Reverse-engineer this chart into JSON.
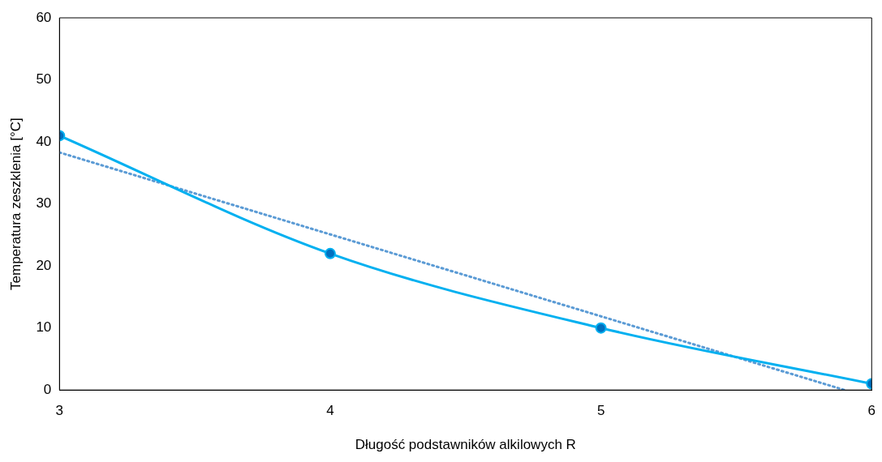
{
  "chart_data": {
    "type": "line",
    "xlabel": "Długość podstawników alkilowych R",
    "ylabel": "Temperatura zeszklenia [°C]",
    "x": [
      3,
      4,
      5,
      6
    ],
    "xlim": [
      3,
      6
    ],
    "xticks": [
      3,
      4,
      5,
      6
    ],
    "ylim": [
      0,
      60
    ],
    "yticks": [
      0,
      10,
      20,
      30,
      40,
      50,
      60
    ],
    "grid": false,
    "legend": false,
    "series": [
      {
        "type": "line",
        "color": "#00b0f0",
        "values": [
          41,
          22,
          10,
          1
        ],
        "marker": "circle",
        "line_style": "solid"
      },
      {
        "type": "line",
        "color": "#5b9bd5",
        "x": [
          3,
          5.9
        ],
        "values": [
          38.3,
          0
        ],
        "marker": "none",
        "line_style": "dotted"
      }
    ]
  }
}
